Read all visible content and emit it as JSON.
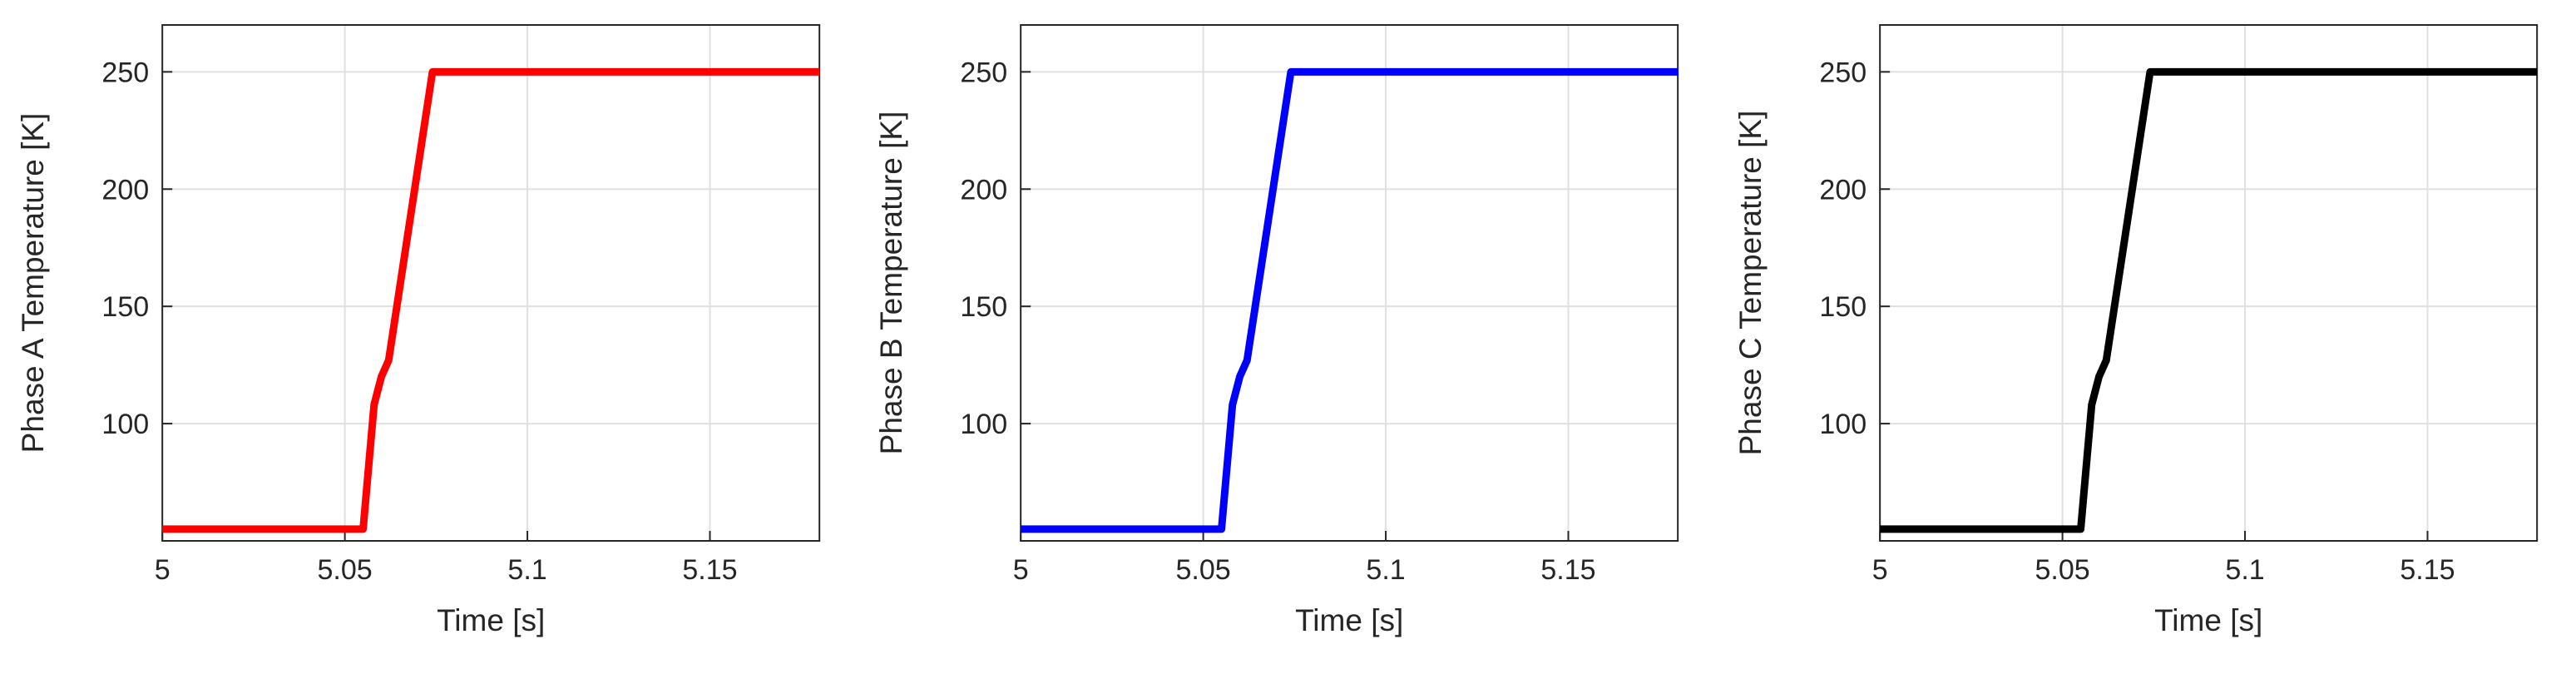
{
  "page": {
    "background": "#ffffff",
    "axis_color": "#262626",
    "grid_color": "#e0e0e0"
  },
  "chart_data": [
    {
      "type": "line",
      "title": "",
      "xlabel": "Time [s]",
      "ylabel": "Phase A Temperature [K]",
      "xlim": [
        5,
        5.18
      ],
      "ylim": [
        50,
        270
      ],
      "xticks": [
        5,
        5.05,
        5.1,
        5.15
      ],
      "xtick_labels": [
        "5",
        "5.05",
        "5.1",
        "5.15"
      ],
      "yticks": [
        100,
        150,
        200,
        250
      ],
      "ytick_labels": [
        "100",
        "150",
        "200",
        "250"
      ],
      "grid": true,
      "legend": "none",
      "series": [
        {
          "name": "Phase A Temperature",
          "color": "#ff0000",
          "x": [
            5.0,
            5.055,
            5.058,
            5.06,
            5.062,
            5.074,
            5.18
          ],
          "y": [
            55,
            55,
            108,
            120,
            127,
            250,
            250
          ]
        }
      ]
    },
    {
      "type": "line",
      "title": "",
      "xlabel": "Time [s]",
      "ylabel": "Phase B Temperature [K]",
      "xlim": [
        5,
        5.18
      ],
      "ylim": [
        50,
        270
      ],
      "xticks": [
        5,
        5.05,
        5.1,
        5.15
      ],
      "xtick_labels": [
        "5",
        "5.05",
        "5.1",
        "5.15"
      ],
      "yticks": [
        100,
        150,
        200,
        250
      ],
      "ytick_labels": [
        "100",
        "150",
        "200",
        "250"
      ],
      "grid": true,
      "legend": "none",
      "series": [
        {
          "name": "Phase B Temperature",
          "color": "#0000ff",
          "x": [
            5.0,
            5.055,
            5.058,
            5.06,
            5.062,
            5.074,
            5.18
          ],
          "y": [
            55,
            55,
            108,
            120,
            127,
            250,
            250
          ]
        }
      ]
    },
    {
      "type": "line",
      "title": "",
      "xlabel": "Time [s]",
      "ylabel": "Phase C Temperature [K]",
      "xlim": [
        5,
        5.18
      ],
      "ylim": [
        50,
        270
      ],
      "xticks": [
        5,
        5.05,
        5.1,
        5.15
      ],
      "xtick_labels": [
        "5",
        "5.05",
        "5.1",
        "5.15"
      ],
      "yticks": [
        100,
        150,
        200,
        250
      ],
      "ytick_labels": [
        "100",
        "150",
        "200",
        "250"
      ],
      "grid": true,
      "legend": "none",
      "series": [
        {
          "name": "Phase C Temperature",
          "color": "#000000",
          "x": [
            5.0,
            5.055,
            5.058,
            5.06,
            5.062,
            5.074,
            5.18
          ],
          "y": [
            55,
            55,
            108,
            120,
            127,
            250,
            250
          ]
        }
      ]
    }
  ]
}
